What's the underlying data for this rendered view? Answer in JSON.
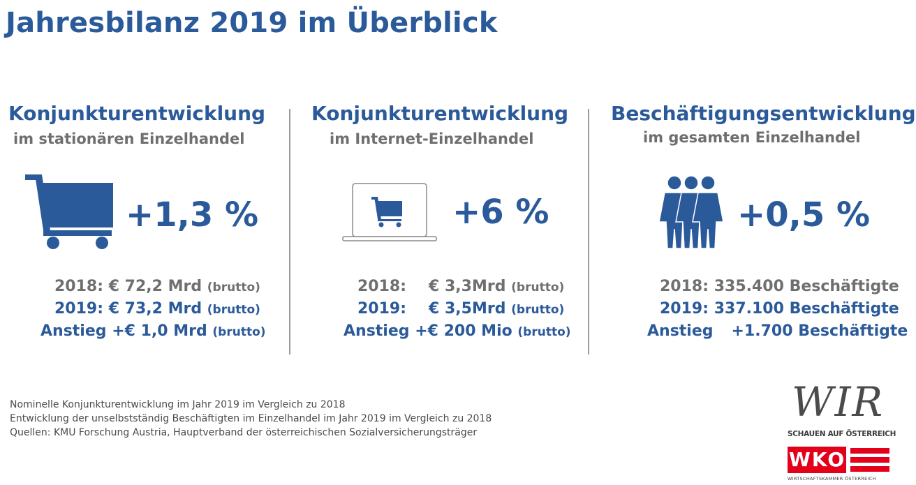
{
  "title": "Jahresbilanz 2019 im Überblick",
  "columns": [
    {
      "heading": "Konjunkturentwicklung",
      "subheading": "im stationären Einzelhandel",
      "value": "+1,3 %",
      "icon": "shopping-cart-icon",
      "lines": [
        {
          "label": "2018:",
          "amount": "€ 72,2 Mrd",
          "note": "(brutto)"
        },
        {
          "label": "2019:",
          "amount": "€ 73,2 Mrd",
          "note": "(brutto)"
        },
        {
          "label": "Anstieg",
          "amount": "+€ 1,0 Mrd",
          "note": "(brutto)"
        }
      ]
    },
    {
      "heading": "Konjunkturentwicklung",
      "subheading": "im Internet-Einzelhandel",
      "value": "+6 %",
      "icon": "laptop-cart-icon",
      "lines": [
        {
          "label": "2018:",
          "amount": "€ 3,3",
          "unit": "Mrd",
          "note": "(brutto)"
        },
        {
          "label": "2019:",
          "amount": "€ 3,5",
          "unit": "Mrd",
          "note": "(brutto)"
        },
        {
          "label": "Anstieg",
          "amount": "+€ 200 Mio",
          "note": "(brutto)"
        }
      ]
    },
    {
      "heading": "Beschäftigungsentwicklung",
      "subheading": "im gesamten Einzelhandel",
      "value": "+0,5 %",
      "icon": "people-group-icon",
      "lines": [
        {
          "label": "2018:",
          "amount": "335.400 Beschäftigte"
        },
        {
          "label": "2019:",
          "amount": "337.100 Beschäftigte"
        },
        {
          "label": "Anstieg",
          "amount": "+1.700 Beschäftigte"
        }
      ]
    }
  ],
  "footnotes": [
    "Nominelle Konjunkturentwicklung im Jahr 2019 im Vergleich zu 2018",
    "Entwicklung der unselbstständig Beschäftigten im Einzelhandel im Jahr 2019 im Vergleich zu 2018",
    "Quellen: KMU Forschung Austria, Hauptverband der österreichischen Sozialversicherungsträger"
  ],
  "logo": {
    "wir": "WIR",
    "tagline": "SCHAUEN AUF ÖSTERREICH",
    "wko": "WKO",
    "wko_sub": "WIRTSCHAFTSKAMMER ÖSTERREICH"
  },
  "colors": {
    "primary_blue": "#2b5a9a",
    "gray": "#6f6f6f",
    "wko_red": "#e3001b"
  }
}
